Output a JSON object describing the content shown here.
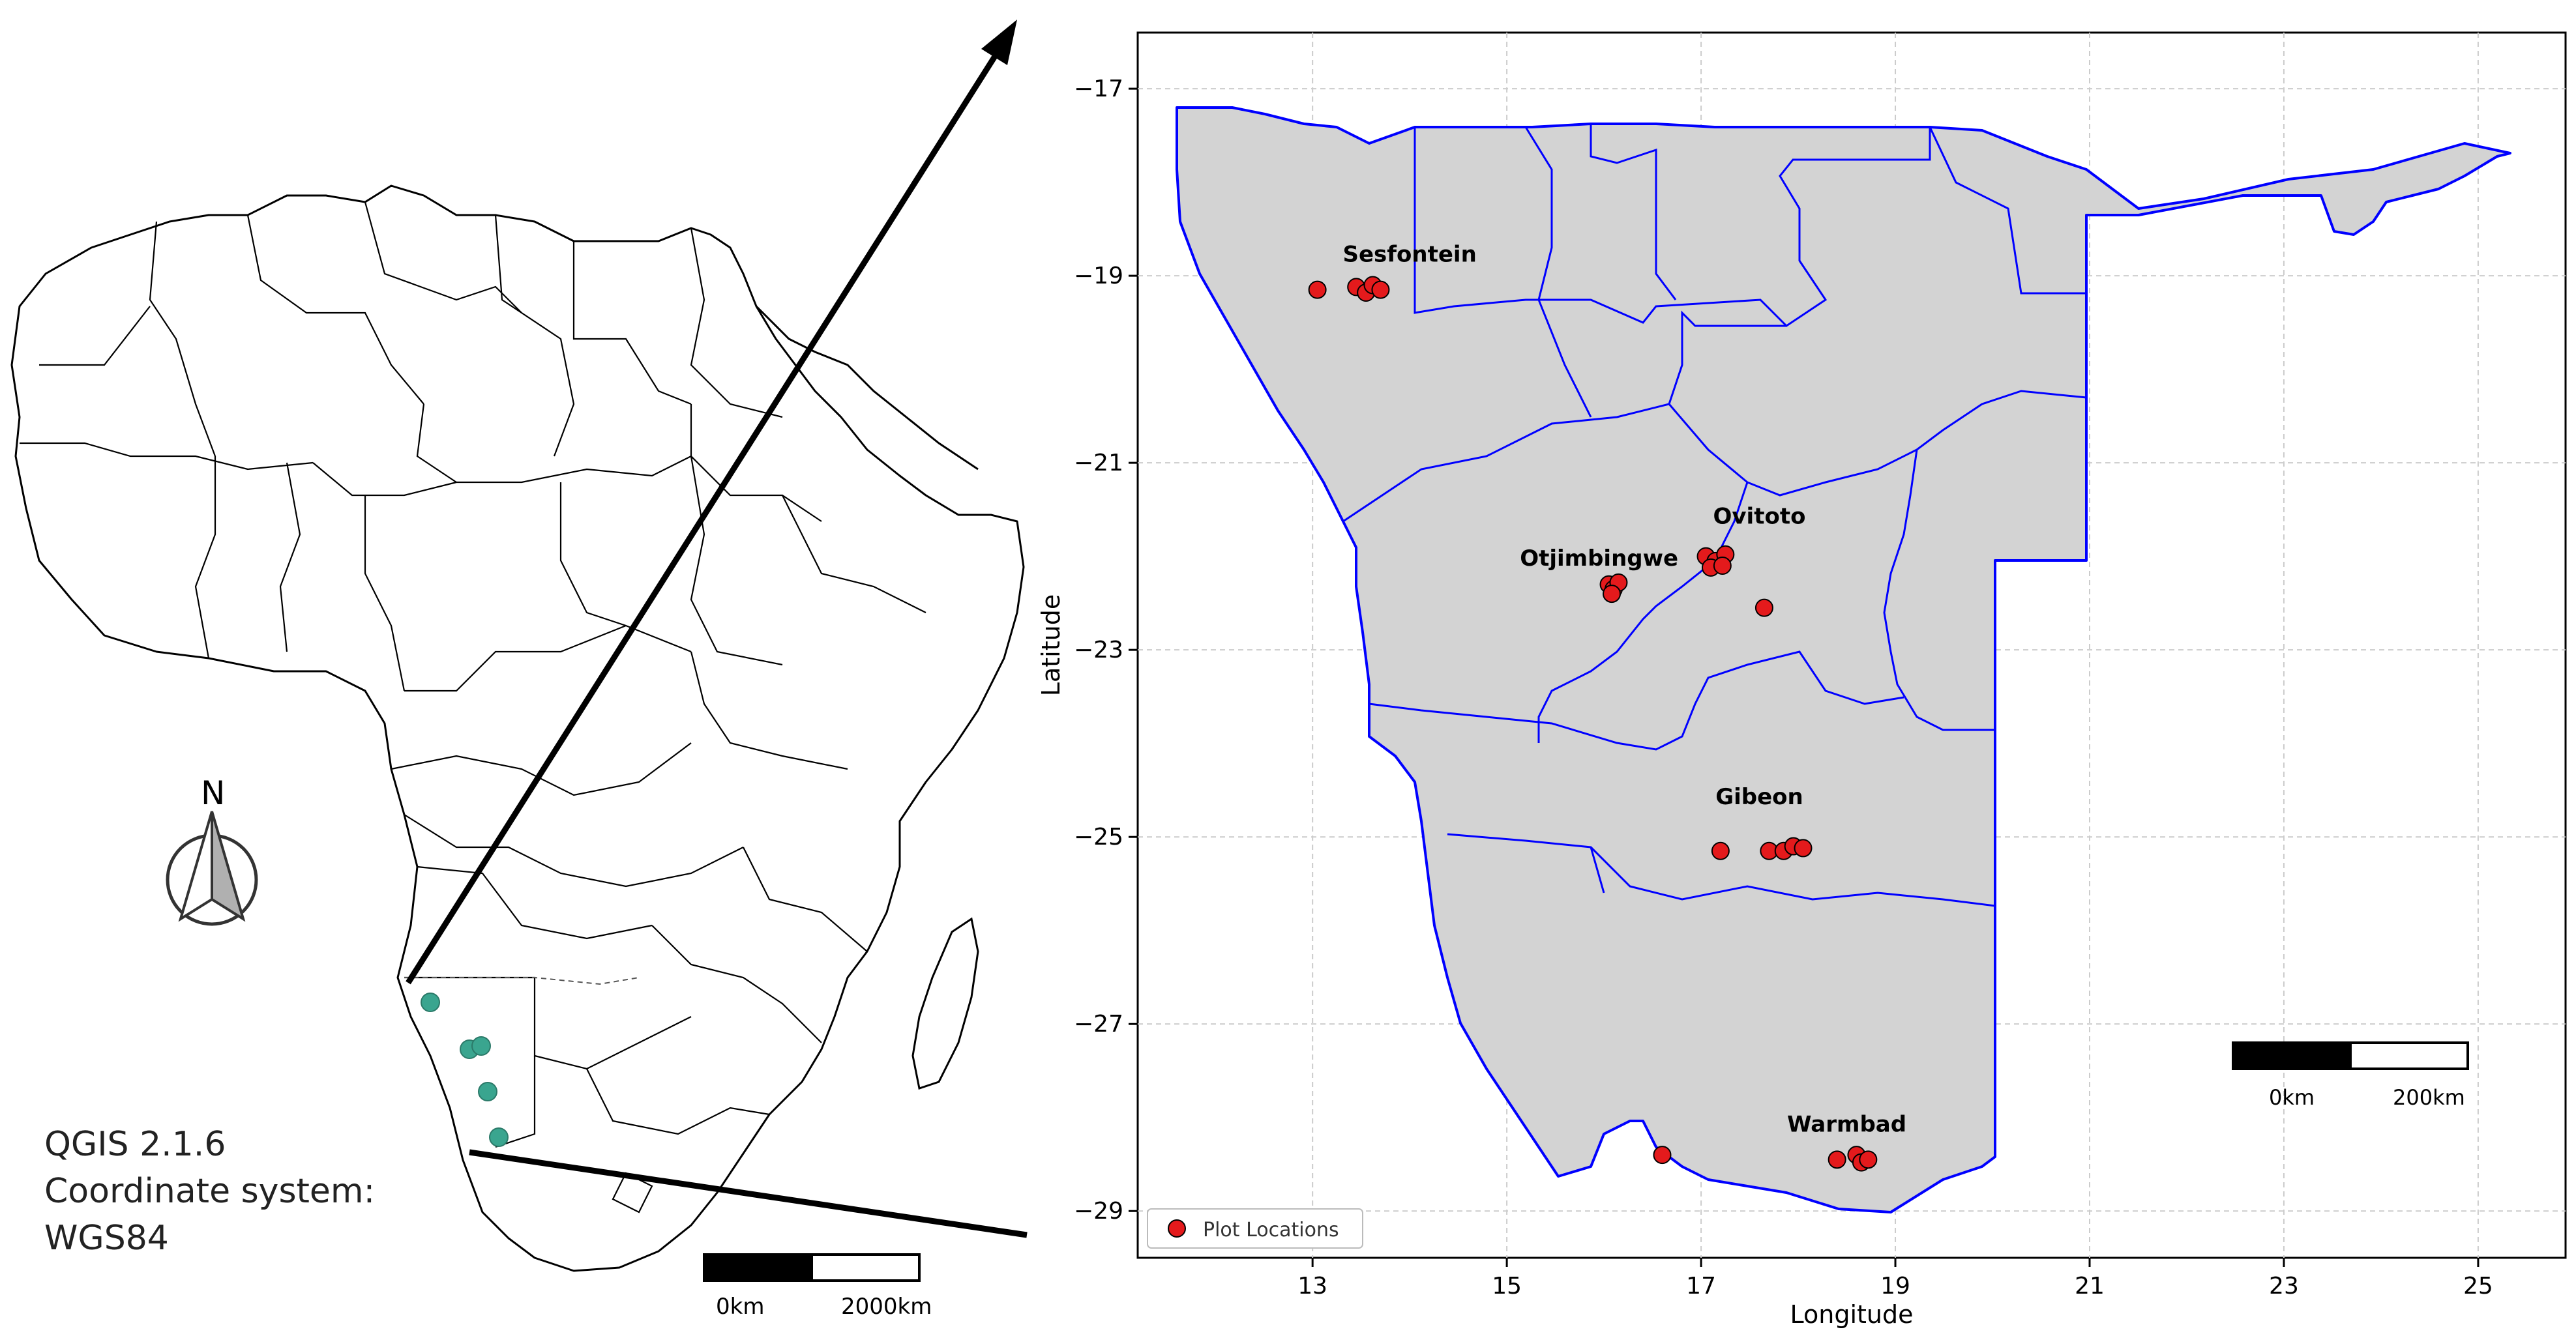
{
  "overview_map": {
    "software_line": "QGIS 2.1.6",
    "crs_line1": "Coordinate system:",
    "crs_line2": "WGS84",
    "north_label": "N",
    "scale_labels": [
      "0km",
      "2000km"
    ],
    "site_marker_color": "#3aa58f",
    "site_count": 5
  },
  "detail_map": {
    "xlabel": "Longitude",
    "ylabel": "Latitude",
    "x_ticks": [
      13,
      15,
      17,
      19,
      21,
      23,
      25
    ],
    "y_ticks": [
      -17,
      -19,
      -21,
      -23,
      -25,
      -27,
      -29
    ],
    "xlim": [
      11.2,
      25.9
    ],
    "ylim": [
      -29.5,
      -16.4
    ],
    "grid": true,
    "legend_position": "bottom-left",
    "legend_label": "Plot Locations",
    "fill_color": "#d3d3d3",
    "border_color": "#0000ff",
    "point_color": "#e41a1c",
    "scale_labels": [
      "0km",
      "200km"
    ],
    "place_labels": [
      {
        "name": "Sesfontein",
        "lon": 14.0,
        "lat": -18.85
      },
      {
        "name": "Ovitoto",
        "lon": 17.6,
        "lat": -21.65
      },
      {
        "name": "Otjimbingwe",
        "lon": 15.95,
        "lat": -22.1
      },
      {
        "name": "Gibeon",
        "lon": 17.6,
        "lat": -24.65
      },
      {
        "name": "Warmbad",
        "lon": 18.5,
        "lat": -28.15
      }
    ],
    "plot_locations": [
      {
        "lon": 13.05,
        "lat": -19.15
      },
      {
        "lon": 13.45,
        "lat": -19.12
      },
      {
        "lon": 13.55,
        "lat": -19.18
      },
      {
        "lon": 13.62,
        "lat": -19.1
      },
      {
        "lon": 13.7,
        "lat": -19.15
      },
      {
        "lon": 16.05,
        "lat": -22.3
      },
      {
        "lon": 16.1,
        "lat": -22.35
      },
      {
        "lon": 16.15,
        "lat": -22.28
      },
      {
        "lon": 16.08,
        "lat": -22.4
      },
      {
        "lon": 17.05,
        "lat": -22.0
      },
      {
        "lon": 17.15,
        "lat": -22.05
      },
      {
        "lon": 17.25,
        "lat": -21.98
      },
      {
        "lon": 17.1,
        "lat": -22.12
      },
      {
        "lon": 17.22,
        "lat": -22.1
      },
      {
        "lon": 17.65,
        "lat": -22.55
      },
      {
        "lon": 17.2,
        "lat": -25.15
      },
      {
        "lon": 17.7,
        "lat": -25.15
      },
      {
        "lon": 17.85,
        "lat": -25.15
      },
      {
        "lon": 17.95,
        "lat": -25.1
      },
      {
        "lon": 18.05,
        "lat": -25.12
      },
      {
        "lon": 16.6,
        "lat": -28.4
      },
      {
        "lon": 18.4,
        "lat": -28.45
      },
      {
        "lon": 18.6,
        "lat": -28.4
      },
      {
        "lon": 18.65,
        "lat": -28.48
      },
      {
        "lon": 18.72,
        "lat": -28.45
      }
    ]
  }
}
